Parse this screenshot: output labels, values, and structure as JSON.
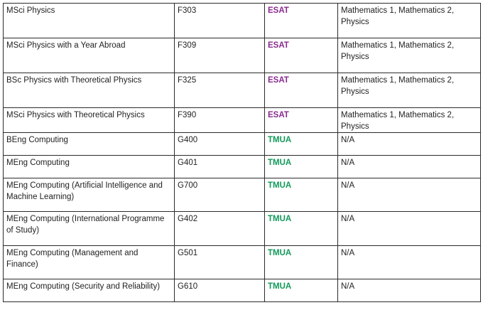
{
  "rows": [
    {
      "course": "MSci Physics",
      "code": "F303",
      "test": "ESAT",
      "subjects": "Mathematics 1, Mathematics 2, Physics"
    },
    {
      "course": "MSci Physics with a Year Abroad",
      "code": "F309",
      "test": "ESAT",
      "subjects": "Mathematics 1, Mathematics 2, Physics"
    },
    {
      "course": "BSc Physics with Theoretical Physics",
      "code": "F325",
      "test": "ESAT",
      "subjects": "Mathematics 1, Mathematics 2, Physics"
    },
    {
      "course": "MSci Physics with Theoretical Physics",
      "code": "F390",
      "test": "ESAT",
      "subjects": "Mathematics 1, Mathematics 2, Physics"
    },
    {
      "course": "BEng Computing",
      "code": "G400",
      "test": "TMUA",
      "subjects": "N/A"
    },
    {
      "course": "MEng Computing",
      "code": "G401",
      "test": "TMUA",
      "subjects": "N/A"
    },
    {
      "course": "MEng Computing (Artificial Intelligence and Machine Learning)",
      "code": "G700",
      "test": "TMUA",
      "subjects": "N/A"
    },
    {
      "course": "MEng Computing (International Programme of Study)",
      "code": "G402",
      "test": "TMUA",
      "subjects": "N/A"
    },
    {
      "course": "MEng Computing (Management and Finance)",
      "code": "G501",
      "test": "TMUA",
      "subjects": "N/A"
    },
    {
      "course": "MEng Computing (Security and Reliability)",
      "code": "G610",
      "test": "TMUA",
      "subjects": "N/A"
    }
  ],
  "colors": {
    "ESAT": "#8a2a8e",
    "TMUA": "#129a5a"
  }
}
